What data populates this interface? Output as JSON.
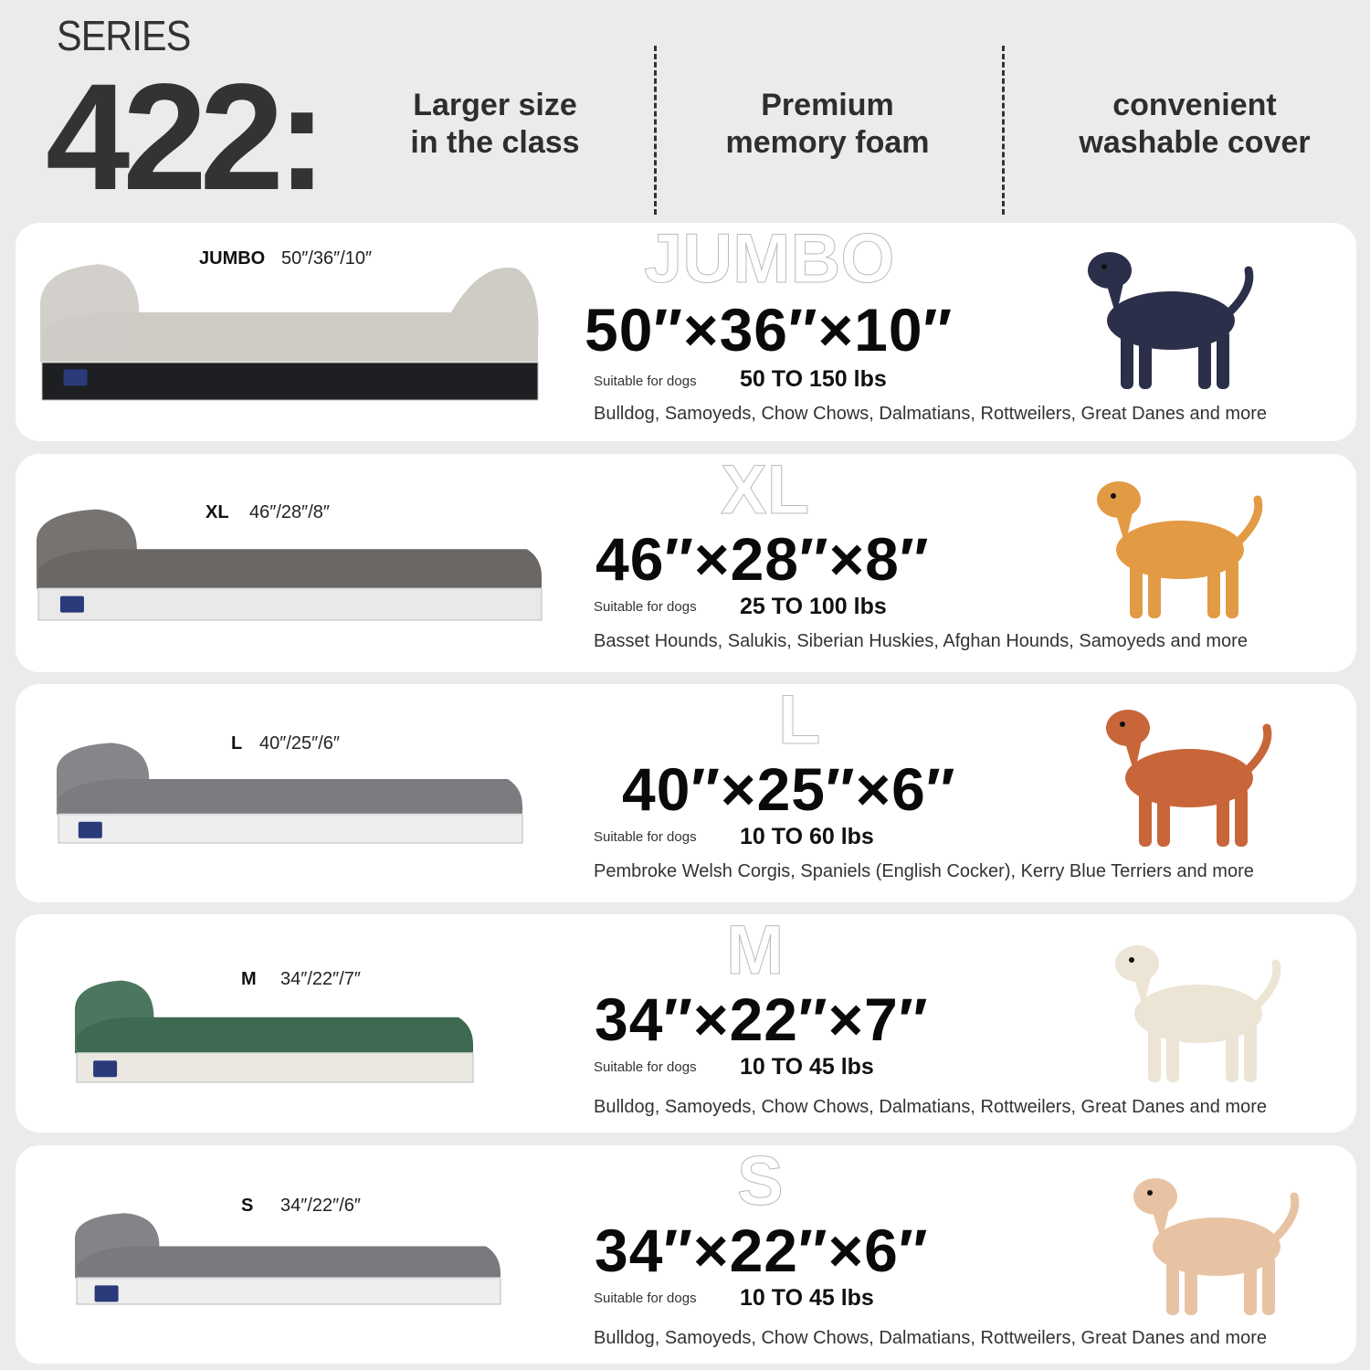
{
  "header": {
    "series_label": "SERIES",
    "series_number": "422:",
    "features": [
      {
        "line1": "Larger size",
        "line2": "in the class"
      },
      {
        "line1": "Premium",
        "line2": "memory foam"
      },
      {
        "line1": "convenient",
        "line2": "washable cover"
      }
    ]
  },
  "suitable_label": "Suitable for dogs",
  "sizes": [
    {
      "size": "JUMBO",
      "short_dims": "50″/36″/10″",
      "dims": "50″×36″×10″",
      "weight": "50 TO 150 lbs",
      "breeds": "Bulldog, Samoyeds, Chow Chows, Dalmatians, Rottweilers, Great Danes and more",
      "bed_top_color": "#cfcbc5",
      "bed_base_color": "#1e1f23",
      "dog": "doberman-icon",
      "dog_color": "#2c2f4a"
    },
    {
      "size": "XL",
      "short_dims": "46″/28″/8″",
      "dims": "46″×28″×8″",
      "weight": "25 TO 100 lbs",
      "breeds": "Basset Hounds, Salukis, Siberian Huskies, Afghan Hounds, Samoyeds and more",
      "bed_top_color": "#6a6765",
      "bed_base_color": "#e9e9e9",
      "dog": "retriever-icon",
      "dog_color": "#e39a45"
    },
    {
      "size": "L",
      "short_dims": "40″/25″/6″",
      "dims": "40″×25″×6″",
      "weight": "10 TO 60 lbs",
      "breeds": "Pembroke Welsh Corgis, Spaniels (English Cocker), Kerry Blue Terriers and more",
      "bed_top_color": "#7b7b80",
      "bed_base_color": "#eeeeee",
      "dog": "beagle-icon",
      "dog_color": "#c8663a"
    },
    {
      "size": "M",
      "short_dims": "34″/22″/7″",
      "dims": "34″×22″×7″",
      "weight": "10 TO 45 lbs",
      "breeds": "Bulldog, Samoyeds, Chow Chows, Dalmatians, Rottweilers, Great Danes and more",
      "bed_top_color": "#3e6a52",
      "bed_base_color": "#ebe8e2",
      "dog": "pug-icon",
      "dog_color": "#ece5d6"
    },
    {
      "size": "S",
      "short_dims": "34″/22″/6″",
      "dims": "34″×22″×6″",
      "weight": "10 TO 45 lbs",
      "breeds": "Bulldog, Samoyeds, Chow Chows, Dalmatians, Rottweilers, Great Danes and more",
      "bed_top_color": "#7a7a7e",
      "bed_base_color": "#eeeeee",
      "dog": "pomeranian-icon",
      "dog_color": "#e8c3a3"
    }
  ]
}
